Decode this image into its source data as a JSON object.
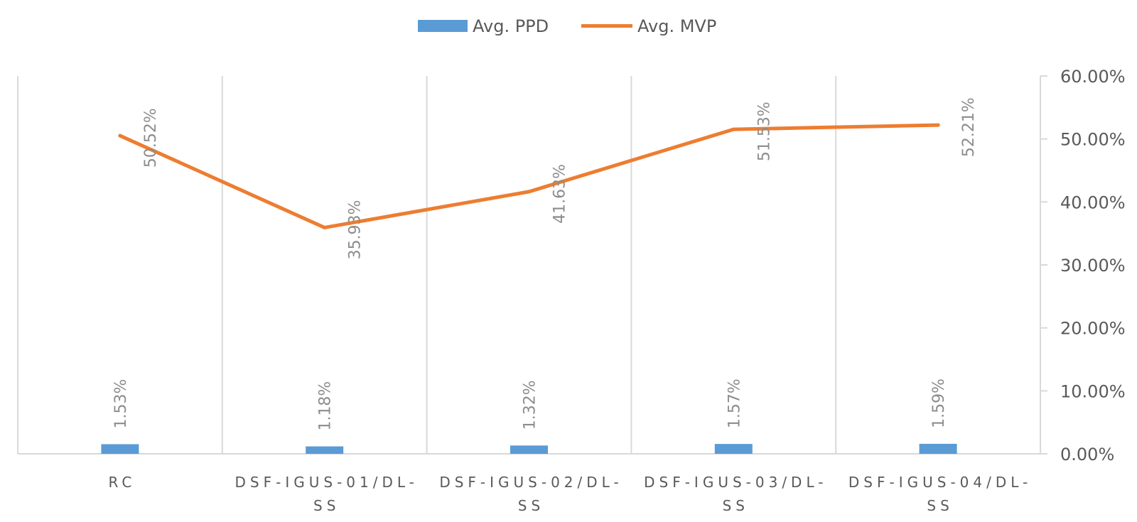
{
  "chart_data": {
    "type": "bar",
    "categories": [
      [
        "RC"
      ],
      [
        "DSF-IGUS-01/DL-",
        "SS"
      ],
      [
        "DSF-IGUS-02/DL-",
        "SS"
      ],
      [
        "DSF-IGUS-03/DL-",
        "SS"
      ],
      [
        "DSF-IGUS-04/DL-",
        "SS"
      ]
    ],
    "series": [
      {
        "name": "Avg. PPD",
        "type": "bar",
        "color": "#5b9bd5",
        "values": [
          1.53,
          1.18,
          1.32,
          1.57,
          1.59
        ],
        "labels": [
          "1.53%",
          "1.18%",
          "1.32%",
          "1.57%",
          "1.59%"
        ]
      },
      {
        "name": "Avg. MVP",
        "type": "line",
        "color": "#ed7d31",
        "values": [
          50.52,
          35.93,
          41.63,
          51.53,
          52.21
        ],
        "labels": [
          "50.52%",
          "35.93%",
          "41.63%",
          "51.53%",
          "52.21%"
        ]
      }
    ],
    "y_axis": {
      "position": "right",
      "range": [
        0,
        60
      ],
      "ticks": [
        0,
        10,
        20,
        30,
        40,
        50,
        60
      ],
      "tick_labels": [
        "0.00%",
        "10.00%",
        "20.00%",
        "30.00%",
        "40.00%",
        "50.00%",
        "60.00%"
      ]
    },
    "legend_position": "top-center",
    "grid": "vertical category separators",
    "axis_color": "#d9d9d9"
  }
}
